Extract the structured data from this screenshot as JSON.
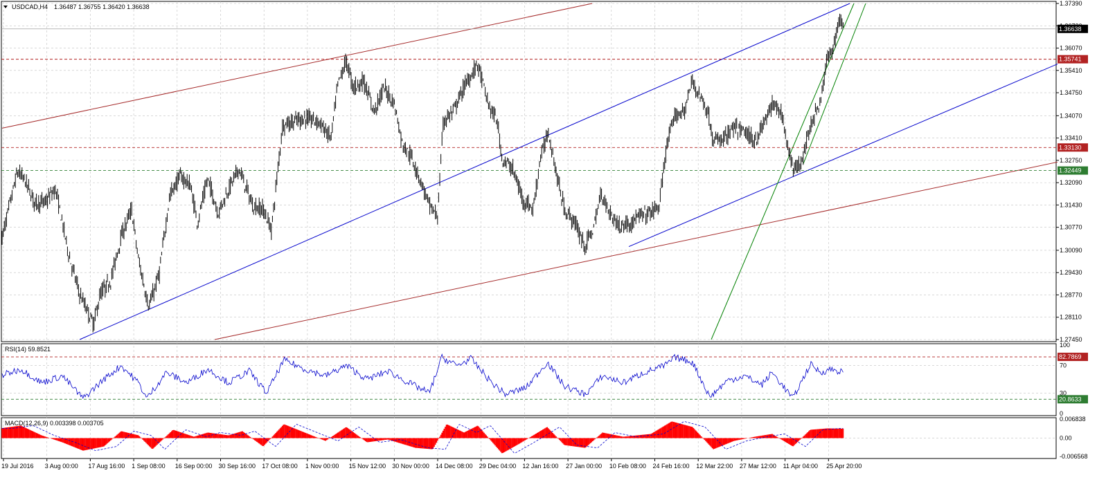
{
  "header": {
    "symbol": "USDCAD,H4",
    "ohlc": "1.36487 1.36755 1.36420 1.36638",
    "menu_icon": "triangle-down-icon"
  },
  "colors": {
    "candles": "#000000",
    "channel_blue": "#0000cc",
    "channel_red": "#a52a2a",
    "trend_green": "#008000",
    "resistance_tag": "#b22222",
    "support_tag": "#2e7d32",
    "rsi_line": "#0000cc",
    "macd_hist": "#ff0000"
  },
  "chart_data": [
    {
      "type": "candlestick",
      "title": "USDCAD,H4",
      "ylim": [
        1.2745,
        1.3739
      ],
      "y_ticks": [
        "1.37390",
        "1.36730",
        "1.36070",
        "1.35410",
        "1.34750",
        "1.34070",
        "1.33410",
        "1.32750",
        "1.32090",
        "1.31430",
        "1.30770",
        "1.30090",
        "1.29430",
        "1.28770",
        "1.28110",
        "1.27450"
      ],
      "x_ticks": [
        "19 Jul 2016",
        "3 Aug 00:00",
        "17 Aug 16:00",
        "1 Sep 08:00",
        "16 Sep 00:00",
        "30 Sep 16:00",
        "17 Oct 08:00",
        "1 Nov 00:00",
        "15 Nov 12:00",
        "30 Nov 00:00",
        "14 Dec 08:00",
        "29 Dec 04:00",
        "12 Jan 16:00",
        "27 Jan 00:00",
        "10 Feb 08:00",
        "24 Feb 16:00",
        "12 Mar 22:00",
        "27 Mar 12:00",
        "11 Apr 04:00",
        "25 Apr 20:00"
      ],
      "current_price": "1.36638",
      "level_labels": [
        {
          "value": "1.35741",
          "style": "resistance"
        },
        {
          "value": "1.33130",
          "style": "resistance"
        },
        {
          "value": "1.32449",
          "style": "support"
        }
      ],
      "path": [
        [
          0,
          1.302
        ],
        [
          25,
          1.324
        ],
        [
          35,
          1.322
        ],
        [
          50,
          1.315
        ],
        [
          65,
          1.315
        ],
        [
          80,
          1.319
        ],
        [
          100,
          1.299
        ],
        [
          115,
          1.288
        ],
        [
          135,
          1.279
        ],
        [
          145,
          1.288
        ],
        [
          160,
          1.292
        ],
        [
          175,
          1.305
        ],
        [
          190,
          1.313
        ],
        [
          200,
          1.298
        ],
        [
          215,
          1.284
        ],
        [
          230,
          1.294
        ],
        [
          245,
          1.317
        ],
        [
          260,
          1.323
        ],
        [
          275,
          1.32
        ],
        [
          285,
          1.309
        ],
        [
          300,
          1.322
        ],
        [
          315,
          1.312
        ],
        [
          330,
          1.319
        ],
        [
          345,
          1.325
        ],
        [
          365,
          1.314
        ],
        [
          380,
          1.313
        ],
        [
          392,
          1.307
        ],
        [
          408,
          1.338
        ],
        [
          425,
          1.339
        ],
        [
          440,
          1.34
        ],
        [
          460,
          1.339
        ],
        [
          478,
          1.334
        ],
        [
          488,
          1.35
        ],
        [
          500,
          1.357
        ],
        [
          510,
          1.349
        ],
        [
          525,
          1.351
        ],
        [
          540,
          1.342
        ],
        [
          555,
          1.349
        ],
        [
          570,
          1.344
        ],
        [
          580,
          1.333
        ],
        [
          595,
          1.328
        ],
        [
          610,
          1.32
        ],
        [
          620,
          1.314
        ],
        [
          632,
          1.311
        ],
        [
          640,
          1.339
        ],
        [
          655,
          1.342
        ],
        [
          672,
          1.35
        ],
        [
          690,
          1.356
        ],
        [
          705,
          1.344
        ],
        [
          718,
          1.339
        ],
        [
          725,
          1.328
        ],
        [
          740,
          1.325
        ],
        [
          755,
          1.316
        ],
        [
          770,
          1.313
        ],
        [
          780,
          1.328
        ],
        [
          792,
          1.336
        ],
        [
          805,
          1.322
        ],
        [
          815,
          1.313
        ],
        [
          830,
          1.309
        ],
        [
          845,
          1.302
        ],
        [
          858,
          1.308
        ],
        [
          868,
          1.318
        ],
        [
          880,
          1.312
        ],
        [
          895,
          1.308
        ],
        [
          910,
          1.309
        ],
        [
          925,
          1.311
        ],
        [
          940,
          1.312
        ],
        [
          952,
          1.314
        ],
        [
          962,
          1.331
        ],
        [
          975,
          1.341
        ],
        [
          988,
          1.342
        ],
        [
          1000,
          1.351
        ],
        [
          1012,
          1.346
        ],
        [
          1022,
          1.342
        ],
        [
          1030,
          1.333
        ],
        [
          1045,
          1.334
        ],
        [
          1060,
          1.337
        ],
        [
          1075,
          1.336
        ],
        [
          1090,
          1.333
        ],
        [
          1102,
          1.338
        ],
        [
          1115,
          1.344
        ],
        [
          1128,
          1.342
        ],
        [
          1138,
          1.331
        ],
        [
          1148,
          1.324
        ],
        [
          1160,
          1.329
        ],
        [
          1172,
          1.339
        ],
        [
          1185,
          1.345
        ],
        [
          1195,
          1.358
        ],
        [
          1205,
          1.362
        ],
        [
          1212,
          1.37
        ],
        [
          1218,
          1.3664
        ]
      ],
      "trend_lines": [
        {
          "color": "channel_blue",
          "points": [
            [
              115,
              1.2745
            ],
            [
              1227,
              1.3739
            ]
          ]
        },
        {
          "color": "channel_blue",
          "points": [
            [
              908,
              1.302
            ],
            [
              1527,
              1.356
            ]
          ]
        },
        {
          "color": "channel_red",
          "points": [
            [
              3,
              1.337
            ],
            [
              855,
              1.3739
            ]
          ]
        },
        {
          "color": "channel_red",
          "points": [
            [
              310,
              1.2745
            ],
            [
              1527,
              1.327
            ]
          ]
        },
        {
          "color": "trend_green",
          "points": [
            [
              1027,
              1.2745
            ],
            [
              1233,
              1.3739
            ]
          ]
        },
        {
          "color": "trend_green",
          "points": [
            [
              1160,
              1.3265
            ],
            [
              1250,
              1.3739
            ]
          ]
        }
      ]
    },
    {
      "type": "line",
      "title": "RSI(14) 59.8521",
      "ylim": [
        0,
        100
      ],
      "y_ticks": [
        "100",
        "70",
        "30",
        "0"
      ],
      "levels": [
        {
          "value": 82.7869,
          "label": "82.7869",
          "style": "resistance"
        },
        {
          "value": 20.8633,
          "label": "20.8633",
          "style": "support"
        }
      ],
      "path": [
        [
          0,
          55
        ],
        [
          30,
          65
        ],
        [
          60,
          45
        ],
        [
          90,
          55
        ],
        [
          120,
          22
        ],
        [
          150,
          50
        ],
        [
          175,
          70
        ],
        [
          200,
          45
        ],
        [
          212,
          22
        ],
        [
          240,
          60
        ],
        [
          270,
          45
        ],
        [
          300,
          65
        ],
        [
          330,
          45
        ],
        [
          360,
          62
        ],
        [
          385,
          30
        ],
        [
          410,
          78
        ],
        [
          440,
          65
        ],
        [
          470,
          55
        ],
        [
          500,
          70
        ],
        [
          530,
          50
        ],
        [
          560,
          62
        ],
        [
          590,
          45
        ],
        [
          620,
          30
        ],
        [
          638,
          82
        ],
        [
          660,
          70
        ],
        [
          680,
          80
        ],
        [
          710,
          45
        ],
        [
          730,
          28
        ],
        [
          760,
          38
        ],
        [
          790,
          75
        ],
        [
          815,
          40
        ],
        [
          845,
          28
        ],
        [
          870,
          55
        ],
        [
          900,
          45
        ],
        [
          930,
          60
        ],
        [
          960,
          70
        ],
        [
          975,
          82
        ],
        [
          1000,
          75
        ],
        [
          1025,
          24
        ],
        [
          1050,
          48
        ],
        [
          1075,
          55
        ],
        [
          1100,
          42
        ],
        [
          1115,
          60
        ],
        [
          1145,
          22
        ],
        [
          1170,
          72
        ],
        [
          1185,
          60
        ],
        [
          1200,
          65
        ],
        [
          1218,
          60
        ]
      ]
    },
    {
      "type": "histogram",
      "title": "MACD(12,26,9) 0.003398 0.003705",
      "ylim": [
        -0.006568,
        0.006838
      ],
      "y_ticks": [
        "0.006838",
        "0.00",
        "-0.006568"
      ],
      "path": [
        [
          0,
          0.0035
        ],
        [
          30,
          0.0045
        ],
        [
          60,
          0.001
        ],
        [
          90,
          -0.0015
        ],
        [
          120,
          -0.0045
        ],
        [
          150,
          -0.003
        ],
        [
          175,
          0.0025
        ],
        [
          200,
          0.001
        ],
        [
          220,
          -0.004
        ],
        [
          250,
          0.003
        ],
        [
          280,
          0.0005
        ],
        [
          300,
          0.002
        ],
        [
          330,
          0.001
        ],
        [
          350,
          0.0025
        ],
        [
          380,
          -0.003
        ],
        [
          410,
          0.005
        ],
        [
          440,
          0.002
        ],
        [
          470,
          -0.001
        ],
        [
          500,
          0.004
        ],
        [
          530,
          -0.0015
        ],
        [
          560,
          -0.0005
        ],
        [
          600,
          -0.0035
        ],
        [
          625,
          -0.004
        ],
        [
          645,
          0.005
        ],
        [
          670,
          0.002
        ],
        [
          690,
          0.0045
        ],
        [
          725,
          -0.0055
        ],
        [
          750,
          -0.002
        ],
        [
          790,
          0.004
        ],
        [
          815,
          -0.0025
        ],
        [
          845,
          -0.0035
        ],
        [
          870,
          0.002
        ],
        [
          900,
          0.0005
        ],
        [
          940,
          0.0015
        ],
        [
          970,
          0.006
        ],
        [
          1000,
          0.004
        ],
        [
          1030,
          -0.004
        ],
        [
          1060,
          -0.001
        ],
        [
          1090,
          0.0005
        ],
        [
          1115,
          0.0015
        ],
        [
          1145,
          -0.003
        ],
        [
          1170,
          0.003
        ],
        [
          1195,
          0.0035
        ],
        [
          1218,
          0.0034
        ]
      ]
    }
  ]
}
